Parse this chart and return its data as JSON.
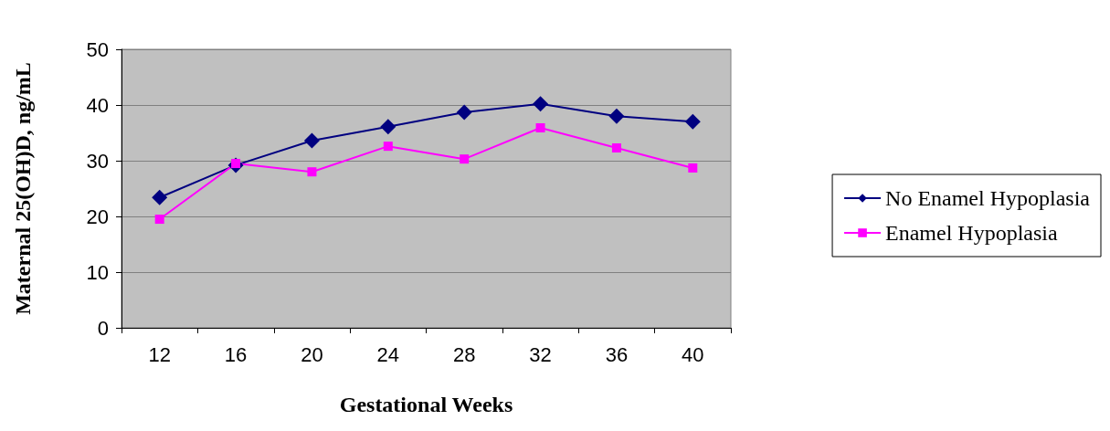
{
  "chart_data": {
    "type": "line",
    "xlabel": "Gestational Weeks",
    "ylabel": "Maternal 25(OH)D, ng/mL",
    "categories": [
      "12",
      "16",
      "20",
      "24",
      "28",
      "32",
      "36",
      "40"
    ],
    "series": [
      {
        "name": "No Enamel Hypoplasia",
        "color": "#000080",
        "marker": "diamond",
        "values": [
          23.4,
          29.2,
          33.6,
          36.1,
          38.7,
          40.2,
          38.0,
          37.0
        ]
      },
      {
        "name": "Enamel Hypoplasia",
        "color": "#ff00ff",
        "marker": "square",
        "values": [
          19.5,
          29.5,
          28.0,
          32.6,
          30.3,
          35.9,
          32.3,
          28.7
        ]
      }
    ],
    "ylim": [
      0,
      50
    ],
    "yticks": [
      0,
      10,
      20,
      30,
      40,
      50
    ],
    "grid": "y",
    "legend": "right"
  }
}
